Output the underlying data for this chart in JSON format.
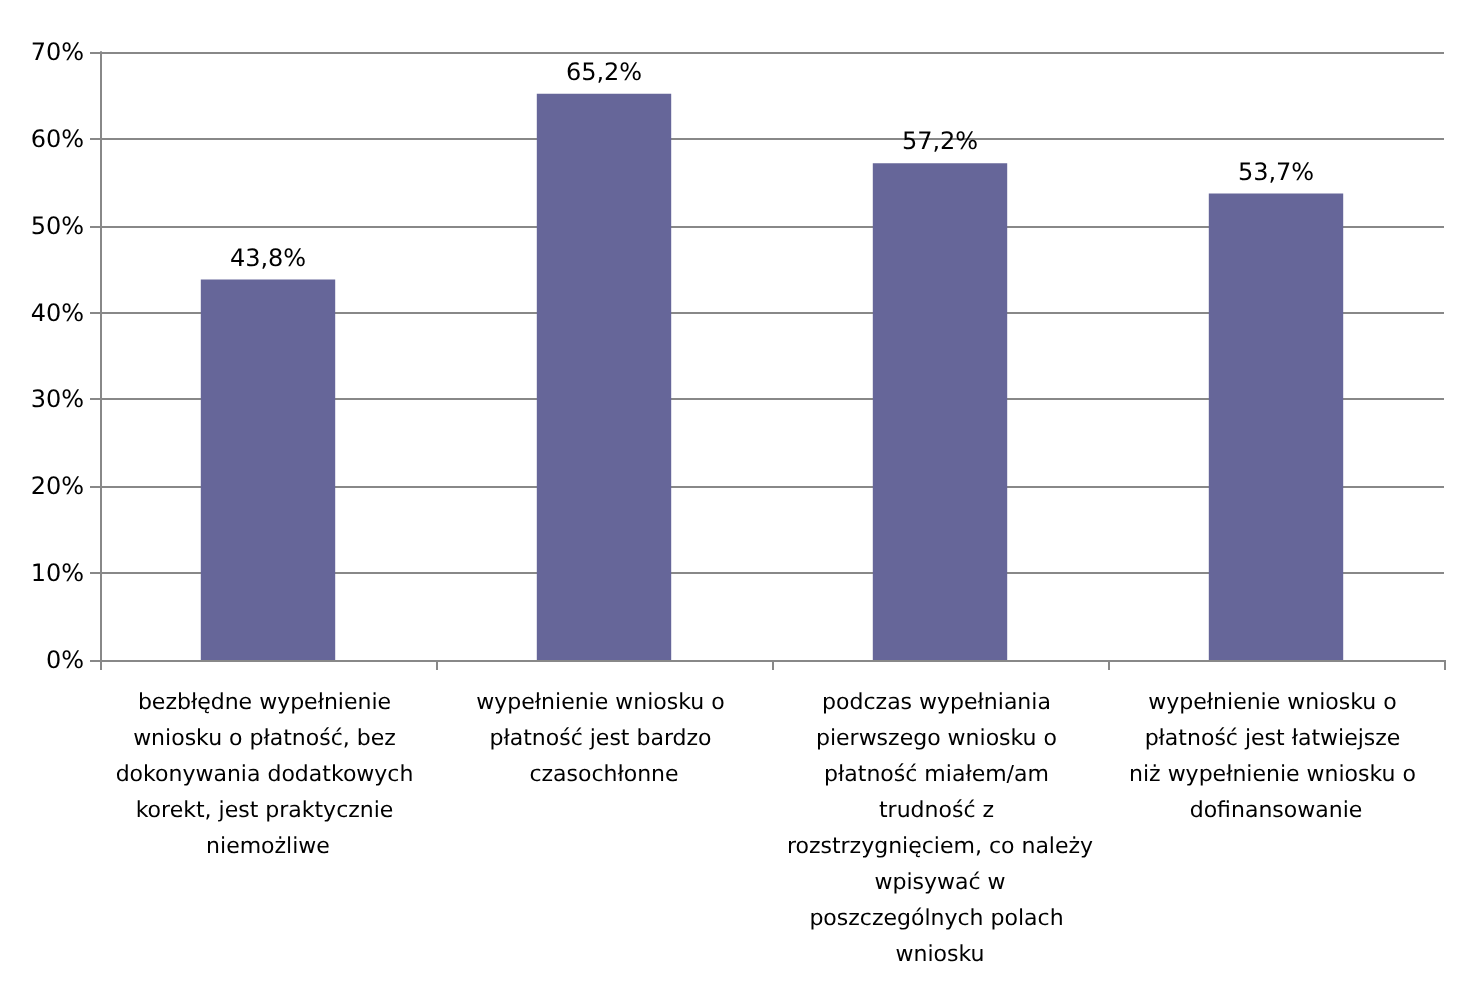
{
  "chart_data": {
    "type": "bar",
    "categories": [
      "bezbłędne wypełnienie wniosku o płatność, bez dokonywania dodatkowych korekt, jest praktycznie niemożliwe",
      "wypełnienie wniosku o płatność jest bardzo czasochłonne",
      "podczas wypełniania pierwszego wniosku o płatność miałem/am trudność z rozstrzygnięciem, co należy wpisywać w poszczególnych polach wniosku",
      "wypełnienie wniosku o płatność jest łatwiejsze niż wypełnienie wniosku o dofinansowanie"
    ],
    "values": [
      43.8,
      65.2,
      57.2,
      53.7
    ],
    "color": "#666699",
    "value_labels": [
      "43,8%",
      "65,2%",
      "57,2%",
      "53,7%"
    ],
    "ylim": [
      0,
      70
    ],
    "yticks": [
      {
        "value": 0,
        "label": "0%"
      },
      {
        "value": 10,
        "label": "10%"
      },
      {
        "value": 20,
        "label": "20%"
      },
      {
        "value": 30,
        "label": "30%"
      },
      {
        "value": 40,
        "label": "40%"
      },
      {
        "value": 50,
        "label": "50%"
      },
      {
        "value": 60,
        "label": "60%"
      },
      {
        "value": 70,
        "label": "70%"
      }
    ],
    "grid": "y"
  }
}
